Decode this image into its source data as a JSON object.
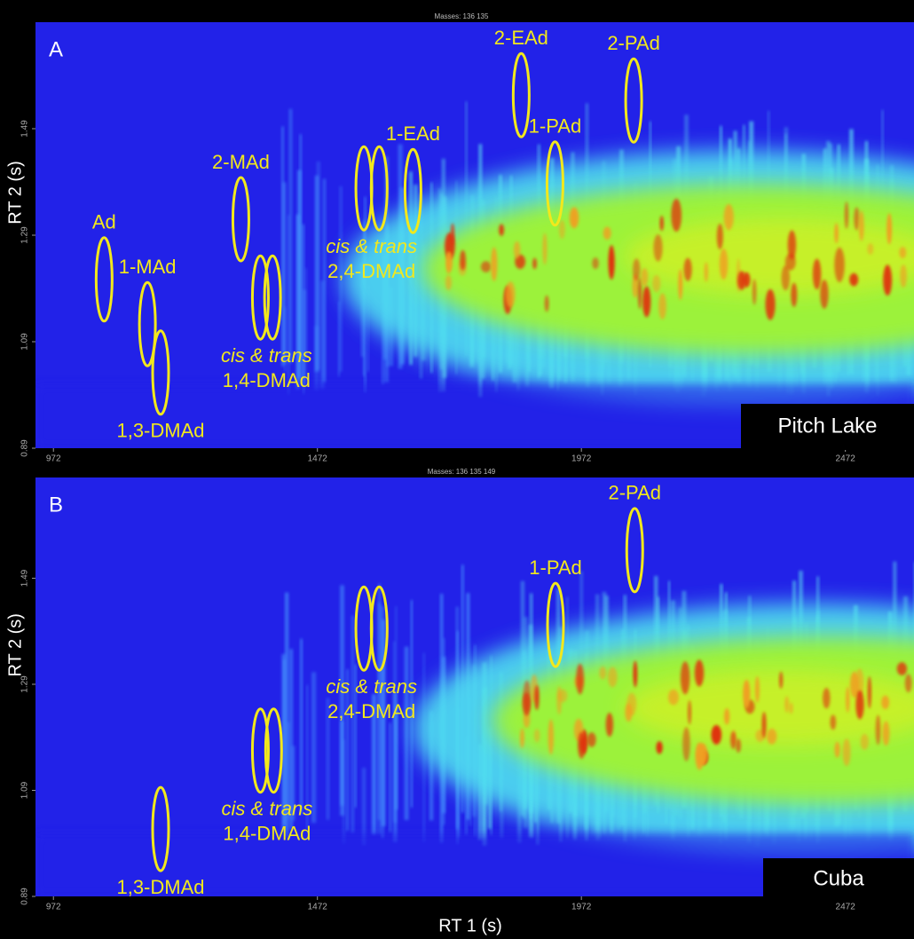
{
  "chart_data": [
    {
      "type": "contour",
      "panel": "A",
      "masses": "Masses: 136 135",
      "sample": "Pitch Lake",
      "ylabel": "RT 2 (s)",
      "xlim": [
        938,
        2602
      ],
      "ylim": [
        0.89,
        1.69
      ],
      "xticks": [
        972,
        1472,
        1972,
        2472
      ],
      "yticks": [
        0.89,
        1.09,
        1.29,
        1.49
      ],
      "peaks": [
        {
          "label": [
            "Ad"
          ],
          "x": [
            1068
          ],
          "y": 1.207,
          "label_side": "above"
        },
        {
          "label": [
            "1-MAd"
          ],
          "x": [
            1150
          ],
          "y": 1.123,
          "label_side": "above"
        },
        {
          "label": [
            "1,3-DMAd"
          ],
          "x": [
            1175
          ],
          "y": 1.032,
          "label_side": "below"
        },
        {
          "label": [
            "2-MAd"
          ],
          "x": [
            1327
          ],
          "y": 1.32,
          "label_side": "above"
        },
        {
          "label": [
            "cis & trans",
            "1,4-DMAd"
          ],
          "x": [
            1364,
            1387
          ],
          "y": 1.173,
          "label_side": "below"
        },
        {
          "label": [
            "cis & trans",
            "2,4-DMAd"
          ],
          "x": [
            1560,
            1589
          ],
          "y": 1.378,
          "label_side": "below"
        },
        {
          "label": [
            "1-EAd"
          ],
          "x": [
            1653
          ],
          "y": 1.373,
          "label_side": "above"
        },
        {
          "label": [
            "2-EAd"
          ],
          "x": [
            1858
          ],
          "y": 1.553,
          "label_side": "above"
        },
        {
          "label": [
            "1-PAd"
          ],
          "x": [
            1922
          ],
          "y": 1.387,
          "label_side": "above"
        },
        {
          "label": [
            "2-PAd"
          ],
          "x": [
            2071
          ],
          "y": 1.543,
          "label_side": "above"
        }
      ]
    },
    {
      "type": "contour",
      "panel": "B",
      "masses": "Masses: 136 135 149",
      "sample": "Cuba",
      "ylabel": "RT 2 (s)",
      "xlabel": "RT 1 (s)",
      "xlim": [
        938,
        2602
      ],
      "ylim": [
        0.89,
        1.68
      ],
      "xticks": [
        972,
        1472,
        1972,
        2472
      ],
      "yticks": [
        0.89,
        1.09,
        1.29,
        1.49
      ],
      "peaks": [
        {
          "label": [
            "1,3-DMAd"
          ],
          "x": [
            1175
          ],
          "y": 1.017,
          "label_side": "below"
        },
        {
          "label": [
            "cis & trans",
            "1,4-DMAd"
          ],
          "x": [
            1364,
            1389
          ],
          "y": 1.165,
          "label_side": "below"
        },
        {
          "label": [
            "cis & trans",
            "2,4-DMAd"
          ],
          "x": [
            1560,
            1589
          ],
          "y": 1.395,
          "label_side": "below"
        },
        {
          "label": [
            "1-PAd"
          ],
          "x": [
            1923
          ],
          "y": 1.402,
          "label_side": "above"
        },
        {
          "label": [
            "2-PAd"
          ],
          "x": [
            2073
          ],
          "y": 1.543,
          "label_side": "above"
        }
      ]
    }
  ]
}
